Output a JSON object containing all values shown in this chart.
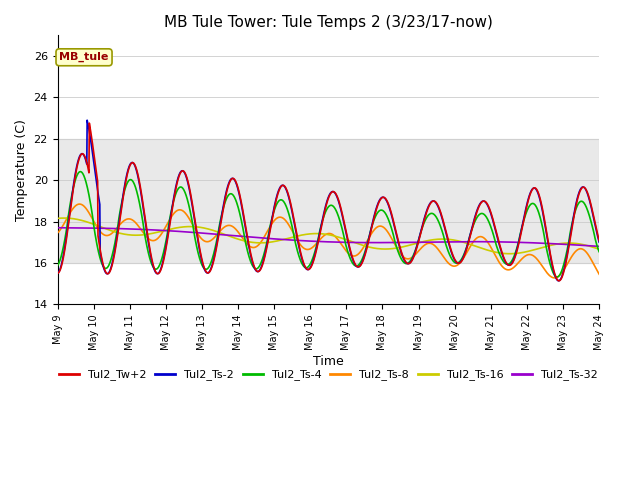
{
  "title": "MB Tule Tower: Tule Temps 2 (3/23/17-now)",
  "xlabel": "Time",
  "ylabel": "Temperature (C)",
  "ylim": [
    14,
    27
  ],
  "yticks": [
    14,
    16,
    18,
    20,
    22,
    24,
    26
  ],
  "n_days": 15,
  "xtick_labels": [
    "May 9",
    "May 10",
    "May 11",
    "May 12",
    "May 13",
    "May 14",
    "May 15",
    "May 16",
    "May 17",
    "May 18",
    "May 19",
    "May 20",
    "May 21",
    "May 22",
    "May 23",
    "May 24"
  ],
  "annotation_text": "MB_tule",
  "shaded_band": [
    16,
    22
  ],
  "series_colors": [
    "#dd0000",
    "#0000cc",
    "#00bb00",
    "#ff8800",
    "#cccc00",
    "#9900cc"
  ],
  "series_labels": [
    "Tul2_Tw+2",
    "Tul2_Ts-2",
    "Tul2_Ts-4",
    "Tul2_Ts-8",
    "Tul2_Ts-16",
    "Tul2_Ts-32"
  ],
  "background_color": "#ffffff",
  "title_fontsize": 11,
  "axis_fontsize": 9,
  "legend_fontsize": 8,
  "linewidth": 1.2
}
